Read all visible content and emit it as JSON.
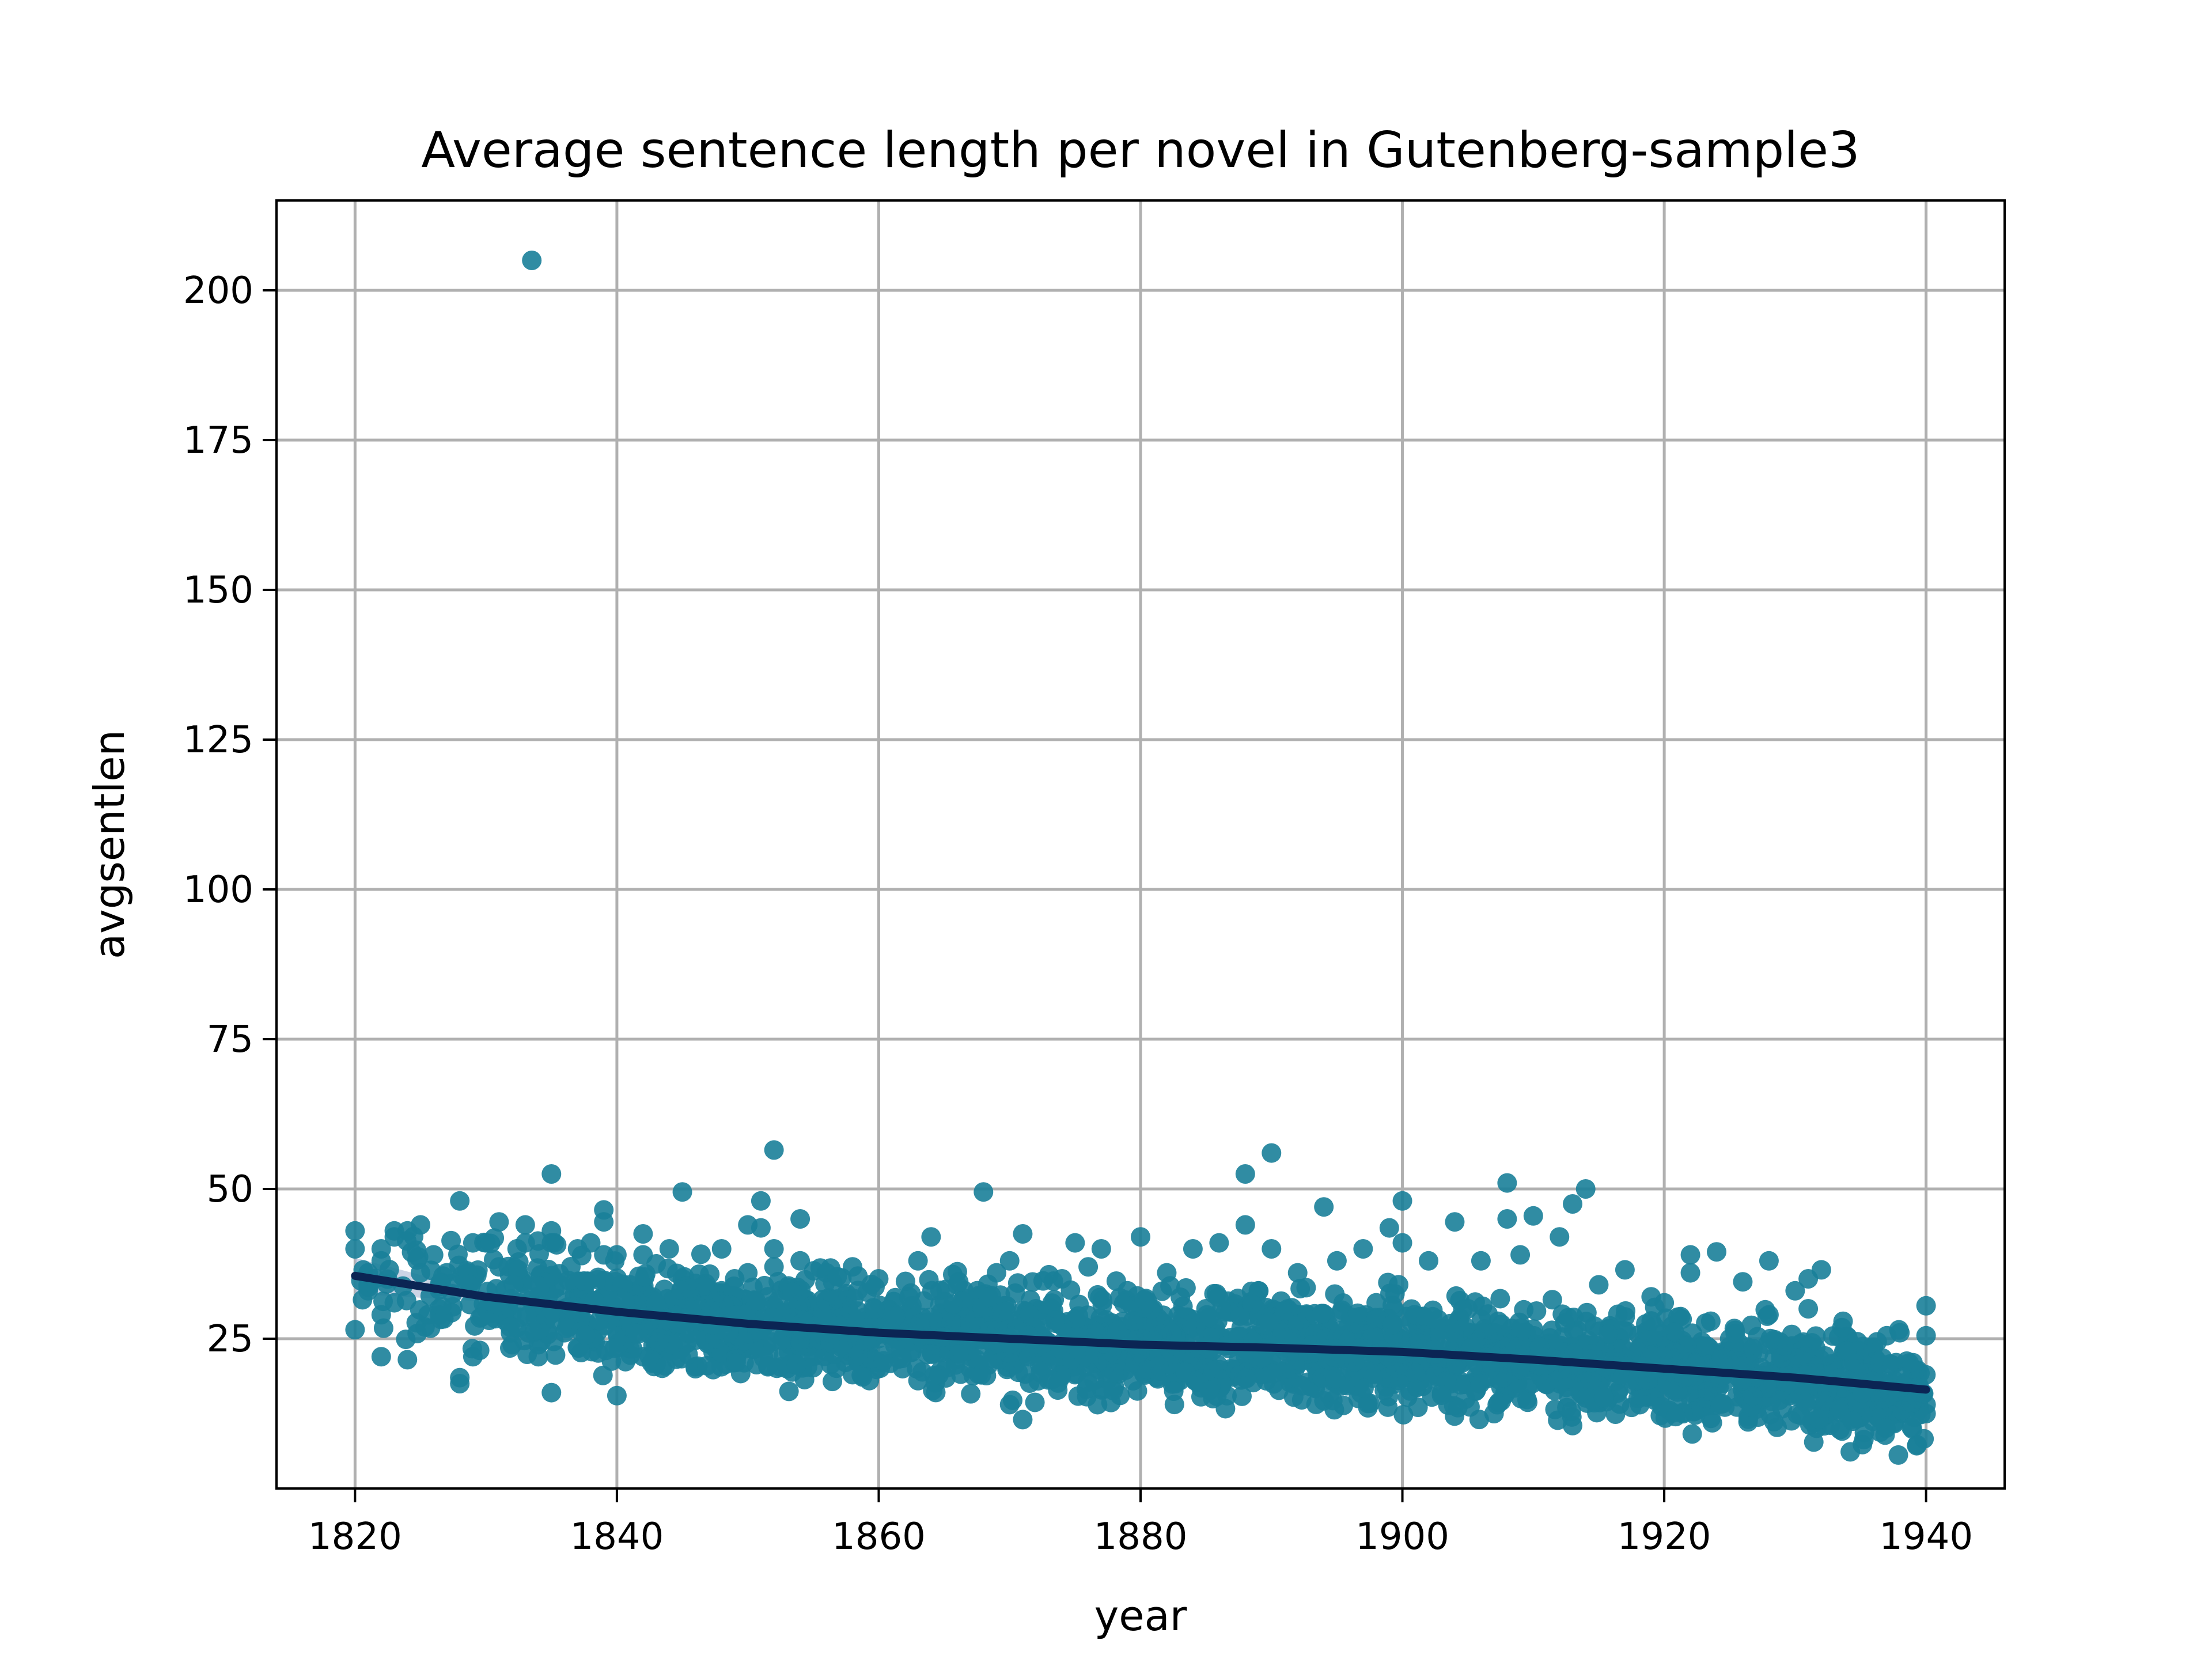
{
  "chart_data": {
    "type": "scatter",
    "title": "Average sentence length per novel in Gutenberg-sample3",
    "xlabel": "year",
    "ylabel": "avgsentlen",
    "xlim": [
      1814,
      1946
    ],
    "ylim": [
      0,
      215
    ],
    "xticks": [
      1820,
      1840,
      1860,
      1880,
      1900,
      1920,
      1940
    ],
    "yticks": [
      25,
      50,
      75,
      100,
      125,
      150,
      175,
      200
    ],
    "grid": true,
    "colors": {
      "points": "#1a7f99",
      "trend": "#0b2554",
      "band": "#aab8d4"
    },
    "points": [
      [
        1820,
        26.5
      ],
      [
        1820,
        43
      ],
      [
        1820,
        40
      ],
      [
        1821,
        34
      ],
      [
        1821,
        36
      ],
      [
        1821,
        33
      ],
      [
        1822,
        38
      ],
      [
        1822,
        22
      ],
      [
        1822,
        29
      ],
      [
        1822,
        40
      ],
      [
        1823,
        42
      ],
      [
        1823,
        43
      ],
      [
        1823,
        31
      ],
      [
        1824,
        21.5
      ],
      [
        1824,
        43
      ],
      [
        1825,
        44
      ],
      [
        1825,
        36
      ],
      [
        1826,
        39
      ],
      [
        1827,
        36
      ],
      [
        1828,
        17.5
      ],
      [
        1828,
        18.5
      ],
      [
        1828,
        48
      ],
      [
        1829,
        22
      ],
      [
        1829,
        41
      ],
      [
        1830,
        30
      ],
      [
        1830,
        41
      ],
      [
        1831,
        37
      ],
      [
        1831,
        44.5
      ],
      [
        1832,
        24
      ],
      [
        1832,
        29
      ],
      [
        1833,
        44
      ],
      [
        1833,
        41
      ],
      [
        1833.5,
        205
      ],
      [
        1834,
        34
      ],
      [
        1834,
        24
      ],
      [
        1834,
        22
      ],
      [
        1835,
        52.5
      ],
      [
        1835,
        16
      ],
      [
        1835,
        43
      ],
      [
        1835,
        41
      ],
      [
        1836,
        30
      ],
      [
        1836,
        26
      ],
      [
        1837,
        40
      ],
      [
        1838,
        27
      ],
      [
        1838,
        41
      ],
      [
        1839,
        46.5
      ],
      [
        1839,
        44.5
      ],
      [
        1839,
        39
      ],
      [
        1840,
        15.5
      ],
      [
        1840,
        26
      ],
      [
        1840,
        39
      ],
      [
        1841,
        29
      ],
      [
        1841,
        34
      ],
      [
        1842,
        42.5
      ],
      [
        1842,
        39
      ],
      [
        1842,
        22
      ],
      [
        1843,
        37.5
      ],
      [
        1843,
        24
      ],
      [
        1844,
        40
      ],
      [
        1844,
        30
      ],
      [
        1845,
        49.5
      ],
      [
        1845,
        35
      ],
      [
        1846,
        27
      ],
      [
        1846,
        20
      ],
      [
        1847,
        30
      ],
      [
        1848,
        33
      ],
      [
        1848,
        40
      ],
      [
        1849,
        35
      ],
      [
        1849,
        23
      ],
      [
        1850,
        44
      ],
      [
        1850,
        36
      ],
      [
        1851,
        48
      ],
      [
        1851,
        43.5
      ],
      [
        1852,
        56.5
      ],
      [
        1852,
        40
      ],
      [
        1852,
        37
      ],
      [
        1853,
        20
      ],
      [
        1853,
        33
      ],
      [
        1854,
        45
      ],
      [
        1854,
        38
      ],
      [
        1855,
        30
      ],
      [
        1855,
        22
      ],
      [
        1856,
        36
      ],
      [
        1857,
        31
      ],
      [
        1858,
        37
      ],
      [
        1858,
        19
      ],
      [
        1859,
        28
      ],
      [
        1860,
        35
      ],
      [
        1860,
        21
      ],
      [
        1861,
        25
      ],
      [
        1862,
        29
      ],
      [
        1863,
        38
      ],
      [
        1863,
        18
      ],
      [
        1864,
        42
      ],
      [
        1865,
        27
      ],
      [
        1866,
        34
      ],
      [
        1867,
        20
      ],
      [
        1868,
        49.5
      ],
      [
        1868,
        24
      ],
      [
        1869,
        36
      ],
      [
        1870,
        14
      ],
      [
        1870,
        38
      ],
      [
        1871,
        11.5
      ],
      [
        1871,
        42.5
      ],
      [
        1872,
        30
      ],
      [
        1873,
        22
      ],
      [
        1874,
        35
      ],
      [
        1875,
        41
      ],
      [
        1875,
        19
      ],
      [
        1876,
        37
      ],
      [
        1877,
        40
      ],
      [
        1878,
        17
      ],
      [
        1879,
        33
      ],
      [
        1880,
        42
      ],
      [
        1880,
        22
      ],
      [
        1881,
        28
      ],
      [
        1882,
        36
      ],
      [
        1883,
        18
      ],
      [
        1884,
        40
      ],
      [
        1885,
        30
      ],
      [
        1886,
        41
      ],
      [
        1887,
        19
      ],
      [
        1888,
        52.5
      ],
      [
        1888,
        44
      ],
      [
        1889,
        33
      ],
      [
        1890,
        56
      ],
      [
        1890,
        40
      ],
      [
        1891,
        23
      ],
      [
        1892,
        36
      ],
      [
        1893,
        17
      ],
      [
        1894,
        47
      ],
      [
        1895,
        38
      ],
      [
        1896,
        20
      ],
      [
        1897,
        40
      ],
      [
        1898,
        31
      ],
      [
        1899,
        43.5
      ],
      [
        1899,
        18
      ],
      [
        1900,
        48
      ],
      [
        1900,
        41
      ],
      [
        1901,
        25
      ],
      [
        1902,
        38
      ],
      [
        1903,
        16
      ],
      [
        1904,
        44.5
      ],
      [
        1905,
        30
      ],
      [
        1906,
        38
      ],
      [
        1907,
        12.5
      ],
      [
        1908,
        51
      ],
      [
        1908,
        45
      ],
      [
        1909,
        39
      ],
      [
        1910,
        45.5
      ],
      [
        1911,
        22
      ],
      [
        1912,
        42
      ],
      [
        1913,
        10.5
      ],
      [
        1913,
        47.5
      ],
      [
        1914,
        50
      ],
      [
        1915,
        34
      ],
      [
        1916,
        24
      ],
      [
        1917,
        36.5
      ],
      [
        1918,
        15
      ],
      [
        1919,
        32
      ],
      [
        1920,
        31
      ],
      [
        1921,
        21
      ],
      [
        1922,
        39
      ],
      [
        1922,
        36
      ],
      [
        1923,
        17
      ],
      [
        1924,
        39.5
      ],
      [
        1925,
        25
      ],
      [
        1926,
        34.5
      ],
      [
        1927,
        14
      ],
      [
        1928,
        38
      ],
      [
        1928,
        29
      ],
      [
        1929,
        18
      ],
      [
        1930,
        33
      ],
      [
        1931,
        35
      ],
      [
        1931,
        30
      ],
      [
        1932,
        36.5
      ],
      [
        1933,
        20
      ],
      [
        1934,
        15
      ],
      [
        1935,
        22
      ],
      [
        1936,
        19
      ],
      [
        1937,
        25.5
      ],
      [
        1938,
        26
      ],
      [
        1939,
        21
      ],
      [
        1940,
        30.5
      ],
      [
        1940,
        25.5
      ],
      [
        1940,
        12.5
      ],
      [
        1940,
        14
      ],
      [
        1939,
        16
      ]
    ],
    "trend": [
      [
        1820,
        35.5
      ],
      [
        1830,
        32
      ],
      [
        1840,
        29.5
      ],
      [
        1850,
        27.5
      ],
      [
        1860,
        26
      ],
      [
        1870,
        25
      ],
      [
        1880,
        24
      ],
      [
        1890,
        23.5
      ],
      [
        1900,
        22.8
      ],
      [
        1910,
        21.5
      ],
      [
        1920,
        20
      ],
      [
        1930,
        18.5
      ],
      [
        1940,
        16.5
      ]
    ]
  }
}
